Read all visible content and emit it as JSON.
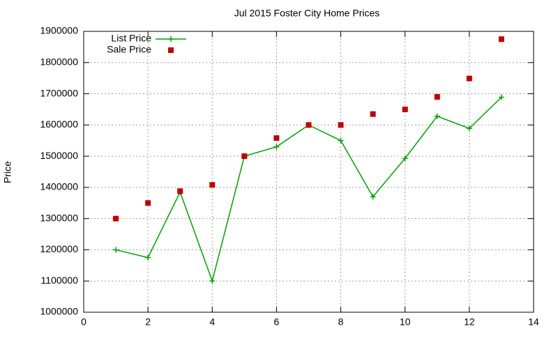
{
  "chart_data": {
    "type": "line",
    "title": "Jul 2015 Foster City Home Prices",
    "y_label": "Price",
    "x": [
      1,
      2,
      3,
      4,
      5,
      6,
      7,
      8,
      9,
      10,
      11,
      12,
      13
    ],
    "series": [
      {
        "name": "List Price",
        "color": "#00a000",
        "style": "linespoints",
        "values": [
          1200000,
          1175000,
          1385000,
          1100000,
          1500000,
          1530000,
          1600000,
          1550000,
          1370000,
          1493000,
          1628000,
          1589000,
          1689000
        ]
      },
      {
        "name": "Sale Price",
        "color": "#c00000",
        "style": "points",
        "values": [
          1300000,
          1350000,
          1388000,
          1408000,
          1500000,
          1558000,
          1600000,
          1600000,
          1635000,
          1650000,
          1690000,
          1749000,
          1875000
        ]
      }
    ],
    "xlim": [
      0,
      14
    ],
    "xticks": [
      0,
      2,
      4,
      6,
      8,
      10,
      12,
      14
    ],
    "ylim": [
      1000000,
      1900000
    ],
    "yticks": [
      1000000,
      1100000,
      1200000,
      1300000,
      1400000,
      1500000,
      1600000,
      1700000,
      1800000,
      1900000
    ],
    "grid": true,
    "legend": "top-left"
  }
}
